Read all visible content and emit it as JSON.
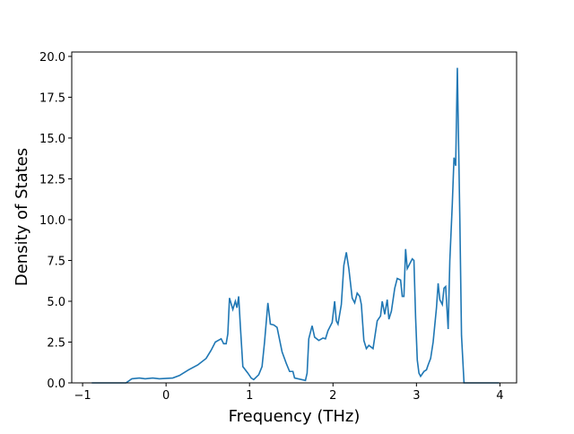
{
  "chart_data": {
    "type": "line",
    "x_label": "Frequency (THz)",
    "y_label": "Density of States",
    "x": [
      -0.89,
      -0.48,
      -0.41,
      -0.32,
      -0.25,
      -0.16,
      -0.08,
      0.08,
      0.16,
      0.27,
      0.38,
      0.48,
      0.54,
      0.59,
      0.66,
      0.69,
      0.72,
      0.74,
      0.76,
      0.8,
      0.83,
      0.85,
      0.87,
      0.89,
      0.92,
      0.98,
      1.02,
      1.05,
      1.11,
      1.15,
      1.18,
      1.22,
      1.25,
      1.29,
      1.33,
      1.39,
      1.44,
      1.48,
      1.52,
      1.54,
      1.67,
      1.69,
      1.71,
      1.75,
      1.78,
      1.83,
      1.88,
      1.91,
      1.94,
      1.99,
      2.02,
      2.04,
      2.06,
      2.1,
      2.13,
      2.16,
      2.19,
      2.23,
      2.26,
      2.29,
      2.32,
      2.34,
      2.37,
      2.4,
      2.43,
      2.48,
      2.53,
      2.57,
      2.59,
      2.62,
      2.65,
      2.67,
      2.7,
      2.74,
      2.77,
      2.81,
      2.83,
      2.85,
      2.87,
      2.89,
      2.92,
      2.95,
      2.97,
      2.99,
      3.01,
      3.03,
      3.05,
      3.09,
      3.12,
      3.14,
      3.17,
      3.2,
      3.24,
      3.26,
      3.28,
      3.31,
      3.33,
      3.35,
      3.38,
      3.4,
      3.43,
      3.45,
      3.47,
      3.49,
      3.52,
      3.54,
      3.57,
      3.99
    ],
    "series": [
      {
        "color": "#1f77b4",
        "values": [
          0,
          0,
          0.25,
          0.3,
          0.25,
          0.3,
          0.25,
          0.3,
          0.45,
          0.8,
          1.1,
          1.5,
          2.0,
          2.5,
          2.7,
          2.4,
          2.4,
          3.0,
          5.2,
          4.5,
          5.0,
          4.6,
          5.3,
          3.5,
          1.0,
          0.6,
          0.3,
          0.2,
          0.5,
          1.0,
          2.5,
          4.9,
          3.6,
          3.55,
          3.4,
          1.9,
          1.2,
          0.7,
          0.7,
          0.3,
          0.15,
          0.6,
          2.7,
          3.5,
          2.8,
          2.6,
          2.75,
          2.7,
          3.2,
          3.7,
          5.0,
          3.8,
          3.6,
          4.8,
          7.2,
          8.0,
          7.0,
          5.2,
          4.9,
          5.5,
          5.3,
          4.8,
          2.6,
          2.1,
          2.3,
          2.1,
          3.8,
          4.1,
          5.0,
          4.2,
          5.1,
          3.9,
          4.4,
          5.8,
          6.4,
          6.3,
          5.3,
          5.3,
          8.2,
          7.0,
          7.3,
          7.6,
          7.5,
          4.0,
          1.4,
          0.6,
          0.4,
          0.7,
          0.8,
          1.1,
          1.5,
          2.5,
          4.6,
          6.1,
          5.1,
          4.8,
          5.8,
          5.9,
          3.3,
          7.5,
          11.0,
          13.8,
          13.3,
          19.3,
          10.0,
          2.9,
          0,
          0
        ]
      }
    ],
    "xlim": [
      -1.13,
      4.2
    ],
    "ylim": [
      0,
      20.27
    ],
    "xticks": [
      {
        "value": -1,
        "label": "−1"
      },
      0,
      1,
      2,
      3,
      4
    ],
    "yticks": [
      {
        "value": 0,
        "label": "0.0"
      },
      2.5,
      {
        "value": 5,
        "label": "5.0"
      },
      7.5,
      {
        "value": 10,
        "label": "10.0"
      },
      12.5,
      {
        "value": 15,
        "label": "15.0"
      },
      17.5,
      {
        "value": 20,
        "label": "20.0"
      }
    ]
  }
}
